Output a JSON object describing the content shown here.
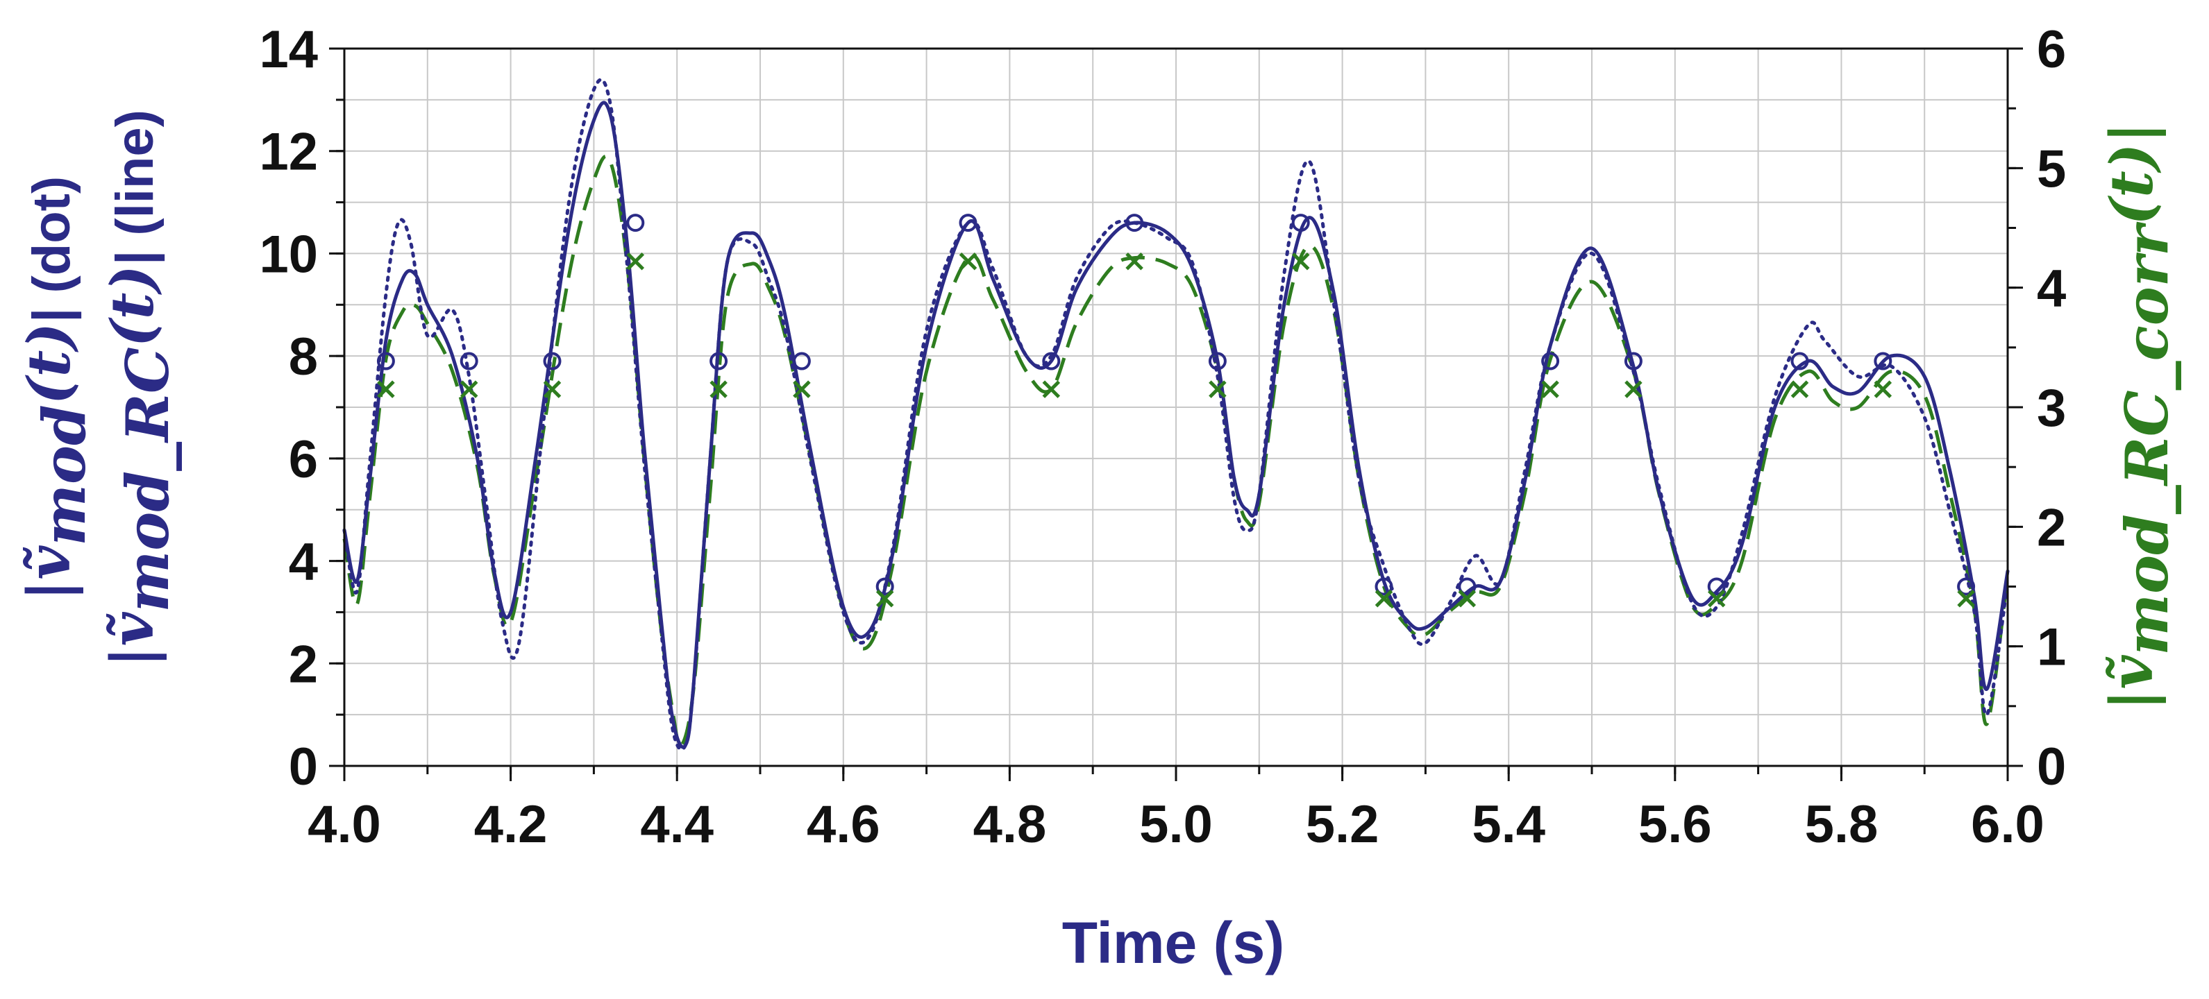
{
  "chart_data": {
    "type": "line",
    "xlabel": "Time (s)",
    "xlim": [
      4.0,
      6.0
    ],
    "x_ticks": [
      "4.0",
      "4.2",
      "4.4",
      "4.6",
      "4.8",
      "5.0",
      "5.2",
      "5.4",
      "5.6",
      "5.8",
      "6.0"
    ],
    "ylim_left": [
      0,
      14
    ],
    "y_ticks_left": [
      "0",
      "2",
      "4",
      "6",
      "8",
      "10",
      "12",
      "14"
    ],
    "ylim_right": [
      0,
      6
    ],
    "y_ticks_right": [
      "0",
      "1",
      "2",
      "3",
      "4",
      "5",
      "6"
    ],
    "ylabel_left": {
      "line1_prefix": "|",
      "line1_symbol": "ṽ",
      "line1_subscript": "mod",
      "line1_arg": "(t)",
      "line1_suffix": "| (dot)",
      "line2_prefix": "|",
      "line2_symbol": "ṽ",
      "line2_subscript": "mod_RC",
      "line2_arg": "(t)",
      "line2_suffix": "| (line)"
    },
    "ylabel_right": {
      "prefix": "|",
      "symbol": "ṽ",
      "subscript": "mod_RC_corr",
      "arg": "(t)",
      "suffix": "|"
    },
    "grid": true,
    "colors": {
      "navy": "#2B2B86",
      "green": "#2E7D1F",
      "grid": "#C8C8C8",
      "axis": "#111111"
    },
    "series": [
      {
        "axis": "left",
        "style": "dotted",
        "x": [
          4.0,
          4.015,
          4.03,
          4.05,
          4.065,
          4.08,
          4.1,
          4.13,
          4.15,
          4.17,
          4.19,
          4.21,
          4.24,
          4.27,
          4.3,
          4.32,
          4.34,
          4.36,
          4.38,
          4.395,
          4.41,
          4.42,
          4.44,
          4.46,
          4.49,
          4.51,
          4.53,
          4.56,
          4.6,
          4.63,
          4.66,
          4.7,
          4.75,
          4.78,
          4.82,
          4.85,
          4.88,
          4.92,
          4.95,
          4.99,
          5.02,
          5.05,
          5.07,
          5.085,
          5.1,
          5.13,
          5.16,
          5.19,
          5.22,
          5.25,
          5.28,
          5.3,
          5.33,
          5.36,
          5.39,
          5.42,
          5.45,
          5.5,
          5.55,
          5.58,
          5.62,
          5.65,
          5.68,
          5.72,
          5.76,
          5.78,
          5.82,
          5.86,
          5.9,
          5.93,
          5.96,
          5.975,
          6.0
        ],
        "y": [
          4.6,
          3.4,
          5.8,
          9.2,
          10.6,
          10.2,
          8.4,
          8.9,
          7.6,
          5.2,
          2.8,
          2.4,
          6.8,
          11.0,
          13.2,
          12.9,
          9.8,
          6.0,
          2.8,
          0.7,
          0.4,
          1.6,
          6.0,
          9.8,
          10.2,
          9.5,
          8.5,
          6.0,
          3.0,
          2.5,
          4.3,
          8.5,
          10.6,
          9.7,
          8.0,
          8.0,
          9.5,
          10.5,
          10.6,
          10.3,
          9.8,
          7.6,
          5.2,
          4.6,
          5.3,
          9.6,
          11.8,
          9.0,
          5.6,
          3.9,
          2.7,
          2.4,
          3.2,
          4.1,
          3.6,
          5.8,
          8.2,
          10.0,
          7.7,
          5.5,
          3.2,
          3.1,
          4.5,
          7.2,
          8.6,
          8.3,
          7.6,
          7.8,
          6.8,
          5.0,
          3.0,
          1.0,
          3.6
        ]
      },
      {
        "axis": "left",
        "style": "solid",
        "x": [
          4.0,
          4.015,
          4.03,
          4.05,
          4.07,
          4.085,
          4.1,
          4.13,
          4.16,
          4.18,
          4.2,
          4.23,
          4.27,
          4.3,
          4.32,
          4.34,
          4.36,
          4.38,
          4.395,
          4.41,
          4.42,
          4.44,
          4.46,
          4.49,
          4.51,
          4.53,
          4.56,
          4.6,
          4.63,
          4.66,
          4.7,
          4.75,
          4.78,
          4.82,
          4.85,
          4.88,
          4.92,
          4.95,
          4.99,
          5.02,
          5.05,
          5.07,
          5.085,
          5.1,
          5.13,
          5.16,
          5.19,
          5.22,
          5.25,
          5.28,
          5.3,
          5.33,
          5.36,
          5.39,
          5.42,
          5.45,
          5.5,
          5.55,
          5.58,
          5.62,
          5.65,
          5.68,
          5.72,
          5.76,
          5.79,
          5.82,
          5.86,
          5.9,
          5.93,
          5.96,
          5.975,
          6.0
        ],
        "y": [
          4.6,
          3.6,
          5.5,
          8.3,
          9.5,
          9.6,
          9.0,
          8.0,
          6.0,
          3.8,
          3.0,
          6.0,
          10.5,
          12.6,
          12.7,
          10.2,
          6.3,
          3.0,
          0.9,
          0.4,
          1.6,
          6.0,
          9.8,
          10.4,
          9.9,
          8.8,
          6.2,
          3.1,
          2.6,
          4.2,
          8.2,
          10.6,
          9.5,
          8.0,
          7.9,
          9.3,
          10.3,
          10.6,
          10.4,
          9.7,
          7.9,
          5.6,
          5.0,
          5.3,
          9.0,
          10.7,
          9.2,
          5.8,
          3.6,
          2.8,
          2.7,
          3.1,
          3.5,
          3.6,
          5.6,
          8.2,
          10.1,
          7.8,
          5.4,
          3.3,
          3.4,
          4.3,
          7.0,
          7.9,
          7.4,
          7.3,
          8.0,
          7.6,
          5.8,
          3.3,
          1.5,
          3.8
        ]
      },
      {
        "axis": "right",
        "style": "dashed",
        "x": [
          4.0,
          4.015,
          4.03,
          4.05,
          4.07,
          4.085,
          4.1,
          4.13,
          4.16,
          4.18,
          4.2,
          4.23,
          4.27,
          4.3,
          4.32,
          4.34,
          4.36,
          4.38,
          4.395,
          4.405,
          4.42,
          4.44,
          4.46,
          4.49,
          4.51,
          4.53,
          4.56,
          4.6,
          4.63,
          4.66,
          4.7,
          4.75,
          4.78,
          4.82,
          4.85,
          4.88,
          4.92,
          4.95,
          4.99,
          5.02,
          5.05,
          5.07,
          5.085,
          5.1,
          5.13,
          5.16,
          5.19,
          5.22,
          5.25,
          5.28,
          5.3,
          5.33,
          5.36,
          5.39,
          5.42,
          5.45,
          5.5,
          5.55,
          5.58,
          5.62,
          5.65,
          5.68,
          5.72,
          5.76,
          5.79,
          5.82,
          5.86,
          5.9,
          5.93,
          5.96,
          5.975,
          6.0
        ],
        "y": [
          1.9,
          1.35,
          2.2,
          3.4,
          3.8,
          3.85,
          3.7,
          3.3,
          2.5,
          1.6,
          1.2,
          2.4,
          4.1,
          4.9,
          5.05,
          4.2,
          2.6,
          1.2,
          0.45,
          0.17,
          0.65,
          2.3,
          3.9,
          4.2,
          4.0,
          3.6,
          2.6,
          1.3,
          1.0,
          1.7,
          3.3,
          4.25,
          3.9,
          3.3,
          3.15,
          3.7,
          4.15,
          4.25,
          4.2,
          4.0,
          3.3,
          2.4,
          2.05,
          2.2,
          3.7,
          4.35,
          3.8,
          2.4,
          1.5,
          1.15,
          1.1,
          1.3,
          1.45,
          1.5,
          2.3,
          3.4,
          4.05,
          3.3,
          2.3,
          1.35,
          1.35,
          1.7,
          2.9,
          3.3,
          3.05,
          3.0,
          3.3,
          3.1,
          2.3,
          1.3,
          0.35,
          1.6
        ]
      }
    ],
    "markers_o": {
      "axis": "left",
      "x": [
        4.05,
        4.15,
        4.25,
        4.35,
        4.45,
        4.55,
        4.65,
        4.75,
        4.85,
        4.95,
        5.05,
        5.15,
        5.25,
        5.35,
        5.45,
        5.55,
        5.65,
        5.75,
        5.85,
        5.95
      ],
      "y": [
        7.9,
        7.9,
        7.9,
        10.6,
        7.9,
        7.9,
        3.5,
        10.6,
        7.9,
        10.6,
        7.9,
        10.6,
        3.5,
        3.5,
        7.9,
        7.9,
        3.5,
        7.9,
        7.9,
        3.5
      ]
    },
    "markers_x": {
      "axis": "right",
      "x": [
        4.05,
        4.15,
        4.25,
        4.35,
        4.45,
        4.55,
        4.65,
        4.75,
        4.85,
        4.95,
        5.05,
        5.15,
        5.25,
        5.35,
        5.45,
        5.55,
        5.65,
        5.75,
        5.85,
        5.95
      ],
      "y": [
        3.15,
        3.15,
        3.15,
        4.22,
        3.15,
        3.15,
        1.4,
        4.22,
        3.15,
        4.22,
        3.15,
        4.22,
        1.4,
        1.4,
        3.15,
        3.15,
        1.4,
        3.15,
        3.15,
        1.4
      ]
    }
  }
}
